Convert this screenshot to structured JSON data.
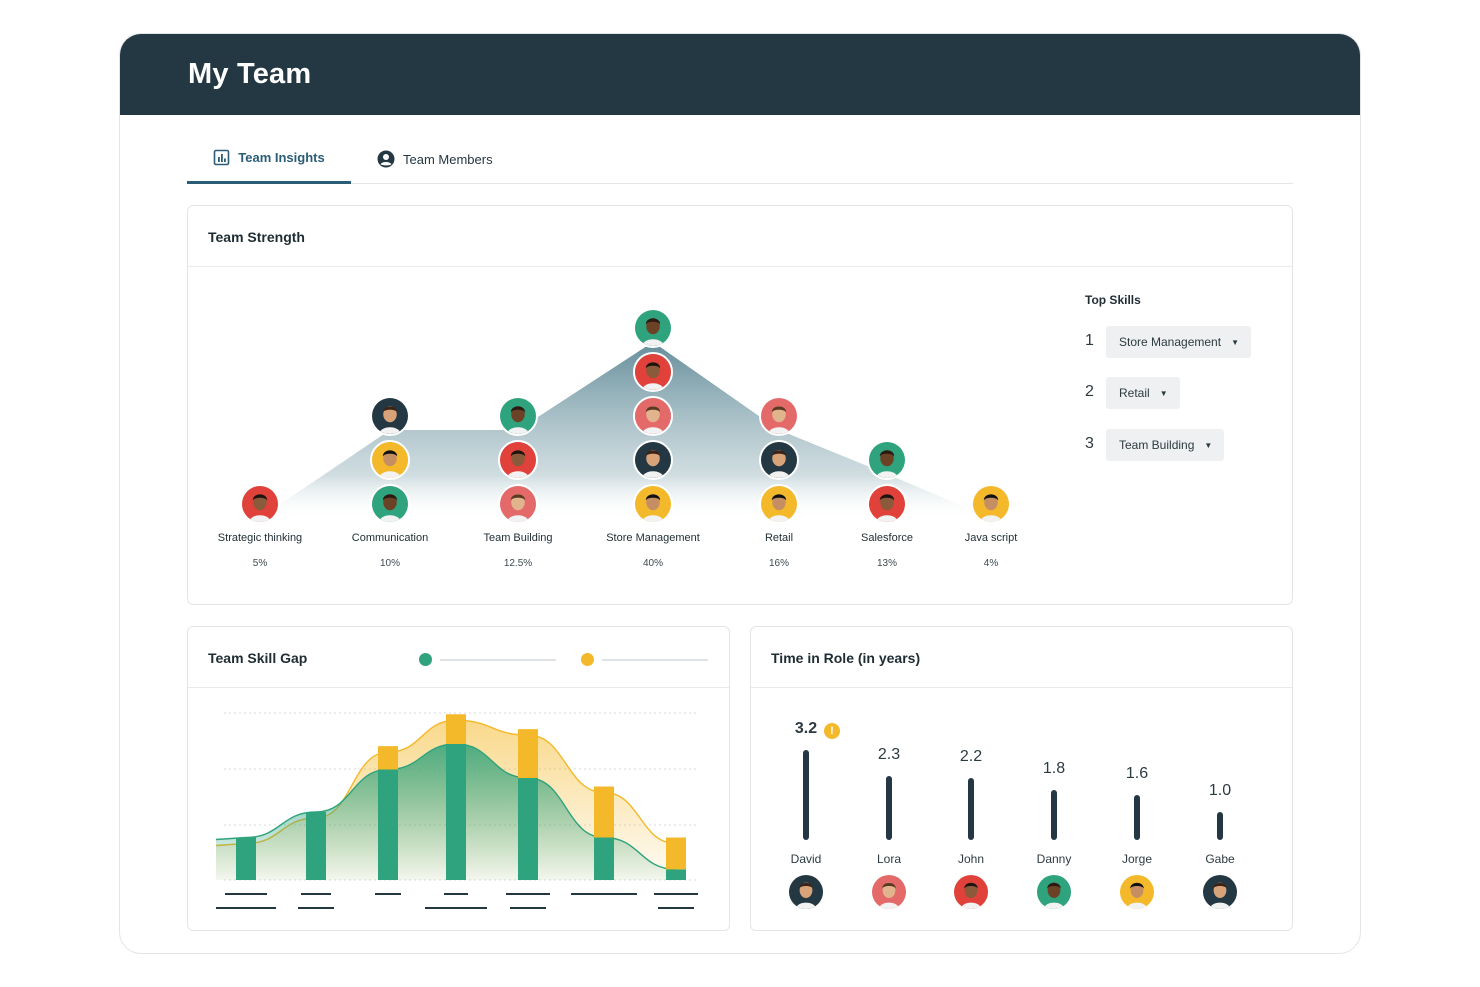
{
  "app": {
    "title": "My Team"
  },
  "tabs": [
    {
      "label": "Team Insights",
      "icon": "bar-chart-icon",
      "active": true
    },
    {
      "label": "Team Members",
      "icon": "user-circle-icon",
      "active": false
    }
  ],
  "strength": {
    "title": "Team Strength",
    "skills": [
      {
        "name": "Strategic thinking",
        "pct": "5%",
        "value": 5,
        "avatars": 1
      },
      {
        "name": "Communication",
        "pct": "10%",
        "value": 10,
        "avatars": 3
      },
      {
        "name": "Team Building",
        "pct": "12.5%",
        "value": 12.5,
        "avatars": 3
      },
      {
        "name": "Store Management",
        "pct": "40%",
        "value": 40,
        "avatars": 5
      },
      {
        "name": "Retail",
        "pct": "16%",
        "value": 16,
        "avatars": 3
      },
      {
        "name": "Salesforce",
        "pct": "13%",
        "value": 13,
        "avatars": 2
      },
      {
        "name": "Java script",
        "pct": "4%",
        "value": 4,
        "avatars": 1
      }
    ],
    "top_skills": {
      "title": "Top Skills",
      "items": [
        {
          "rank": "1",
          "value": "Store Management"
        },
        {
          "rank": "2",
          "value": "Retail"
        },
        {
          "rank": "3",
          "value": "Team Building"
        }
      ]
    }
  },
  "skill_gap": {
    "title": "Team Skill Gap",
    "legend_colors": [
      "#2fa37d",
      "#f4b92b"
    ]
  },
  "time_in_role": {
    "title": "Time in Role (in years)",
    "max_icon": "warning-icon",
    "max_icon_glyph": "!",
    "people": [
      {
        "name": "David",
        "value": "3.2",
        "years": 3.2
      },
      {
        "name": "Lora",
        "value": "2.3",
        "years": 2.3
      },
      {
        "name": "John",
        "value": "2.2",
        "years": 2.2
      },
      {
        "name": "Danny",
        "value": "1.8",
        "years": 1.8
      },
      {
        "name": "Jorge",
        "value": "1.6",
        "years": 1.6
      },
      {
        "name": "Gabe",
        "value": "1.0",
        "years": 1.0
      }
    ]
  },
  "chart_data": {
    "type": "bar",
    "categories": [
      "",
      "",
      "",
      "",
      "",
      "",
      ""
    ],
    "series": [
      {
        "values": [
          1.0,
          1.6,
          2.6,
          3.2,
          2.4,
          1.0,
          0.25
        ],
        "color": "#2fa37d"
      },
      {
        "values": [
          0,
          0,
          0.55,
          0.7,
          1.15,
          1.2,
          0.75
        ],
        "color": "#f4b92b"
      }
    ],
    "ylim": [
      0,
      4
    ],
    "grid": true
  },
  "colors": {
    "header": "#243843",
    "accent": "#2b5d77",
    "green": "#2fa37d",
    "yellow": "#f4b92b",
    "red": "#e0413a",
    "navy": "#243843"
  }
}
